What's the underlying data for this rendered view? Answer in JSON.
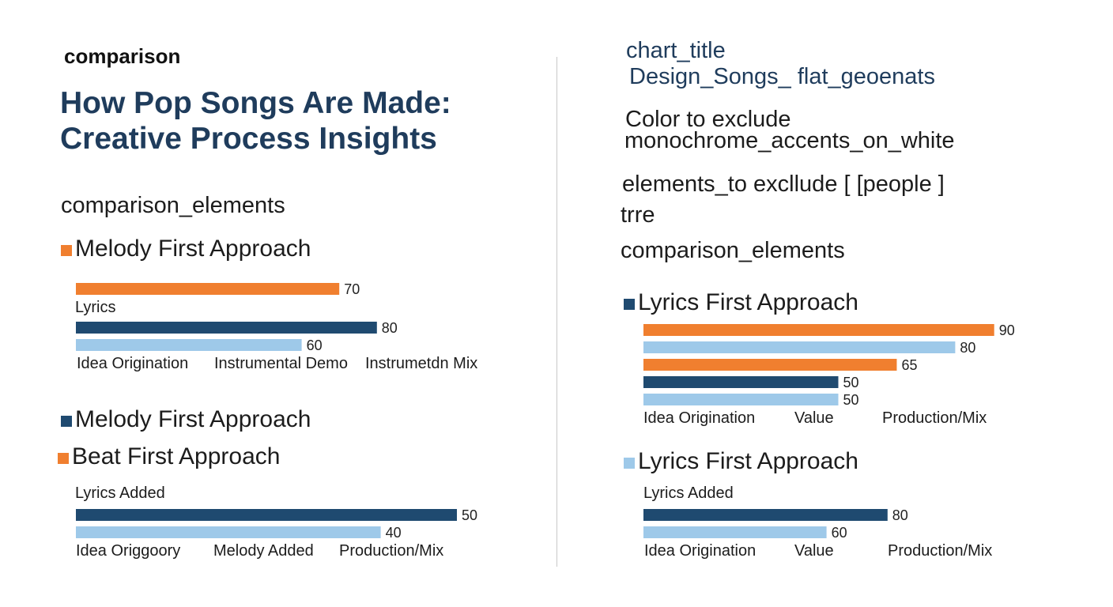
{
  "colors": {
    "orange": "#f07f2f",
    "navy": "#1f4a70",
    "lightblue": "#9ec9e9",
    "title": "#1f3c5c"
  },
  "left": {
    "kicker": "comparison",
    "title_line1": "How Pop Songs Are Made:",
    "title_line2": "Creative Process Insights",
    "elements_label": "comparison_elements",
    "section1": {
      "label": "Melody First Approach",
      "color": "orange",
      "mid_label": "Lyrics",
      "categories": [
        "Idea Origination",
        "Instrumental Demo",
        "Instrumetdn Mix"
      ]
    },
    "section2": {
      "label": "Melody First Approach",
      "color": "navy"
    },
    "section3": {
      "label": "Beat First Approach",
      "color": "orange",
      "top_label": "Lyrics Added",
      "categories": [
        "Idea Origgoory",
        "Melody Added",
        "Production/Mix"
      ]
    }
  },
  "right": {
    "chart_title_key": "chart_title",
    "chart_title_value": "Design_Songs_ flat_geoenats",
    "color_key": "Color  to exclude",
    "color_value": "monochrome_accents_on_white",
    "elements_key": "elements_to excllude [ [people ]",
    "elements_value": "trre",
    "elements_label": "comparison_elements",
    "section1": {
      "label": "Lyrics First Approach",
      "color": "navy",
      "categories": [
        "Idea Origination",
        "Value",
        "Production/Mix"
      ]
    },
    "section2": {
      "label": "Lyrics First Approach",
      "color": "lightblue",
      "top_label": "Lyrics Added",
      "categories": [
        "Idea Origination",
        "Value",
        "Production/Mix"
      ]
    }
  },
  "chart_data": [
    {
      "type": "bar",
      "title": "Melody First Approach",
      "series": [
        {
          "values": [
            70
          ],
          "color": "orange"
        },
        {
          "values": [
            80
          ],
          "color": "navy"
        },
        {
          "values": [
            60
          ],
          "color": "lightblue"
        }
      ]
    },
    {
      "type": "bar",
      "title": "Beat First Approach",
      "series": [
        {
          "values": [
            50
          ],
          "color": "navy"
        },
        {
          "values": [
            40
          ],
          "color": "lightblue"
        }
      ]
    },
    {
      "type": "bar",
      "title": "Lyrics First Approach",
      "series": [
        {
          "values": [
            90
          ],
          "color": "orange"
        },
        {
          "values": [
            80
          ],
          "color": "lightblue"
        },
        {
          "values": [
            65
          ],
          "color": "orange"
        },
        {
          "values": [
            50
          ],
          "color": "navy"
        },
        {
          "values": [
            50
          ],
          "color": "lightblue"
        }
      ]
    },
    {
      "type": "bar",
      "title": "Lyrics First Approach",
      "series": [
        {
          "values": [
            80
          ],
          "color": "navy"
        },
        {
          "values": [
            60
          ],
          "color": "lightblue"
        }
      ]
    }
  ]
}
